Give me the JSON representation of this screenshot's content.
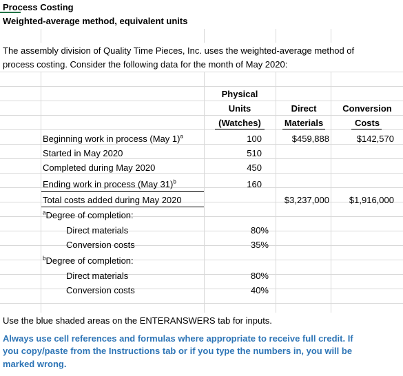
{
  "title": "Process Costing",
  "subtitle": "Weighted-average method, equivalent units",
  "intro_line1": "The assembly division of Quality Time Pieces, Inc. uses the weighted-average method of",
  "intro_line2": "process costing. Consider the following data for the month of May 2020:",
  "headers": {
    "physical_1": "Physical",
    "physical_2": "Units",
    "physical_3": "(Watches)",
    "direct_1": "Direct",
    "direct_2": "Materials",
    "conversion_1": "Conversion",
    "conversion_2": "Costs"
  },
  "rows": {
    "beginning": {
      "label": "Beginning work in process (May 1)",
      "sup": "a",
      "units": "100",
      "dm": "$459,888",
      "cc": "$142,570"
    },
    "started": {
      "label": "Started in May 2020",
      "units": "510"
    },
    "completed": {
      "label": "Completed during May 2020",
      "units": "450"
    },
    "ending": {
      "label": "Ending work in process (May 31)",
      "sup": "b",
      "units": "160"
    },
    "total": {
      "label": "Total costs added during May 2020",
      "dm": "$3,237,000",
      "cc": "$1,916,000"
    }
  },
  "degree_a": {
    "sup": "a",
    "heading": "Degree of completion:",
    "dm_label": "Direct materials",
    "dm_value": "80%",
    "cc_label": "Conversion costs",
    "cc_value": "35%"
  },
  "degree_b": {
    "sup": "b",
    "heading": "Degree of completion:",
    "dm_label": "Direct materials",
    "dm_value": "80%",
    "cc_label": "Conversion costs",
    "cc_value": "40%"
  },
  "note": "Use the blue shaded areas on the ENTERANSWERS tab for inputs.",
  "warning_line1": "Always use cell references and formulas where appropriate to receive full credit. If",
  "warning_line2": "you copy/paste from the Instructions tab or if you type the numbers in, you will be",
  "warning_line3": "marked wrong.",
  "colors": {
    "warning": "#2e75b6",
    "gridline": "#d9d9d9"
  }
}
